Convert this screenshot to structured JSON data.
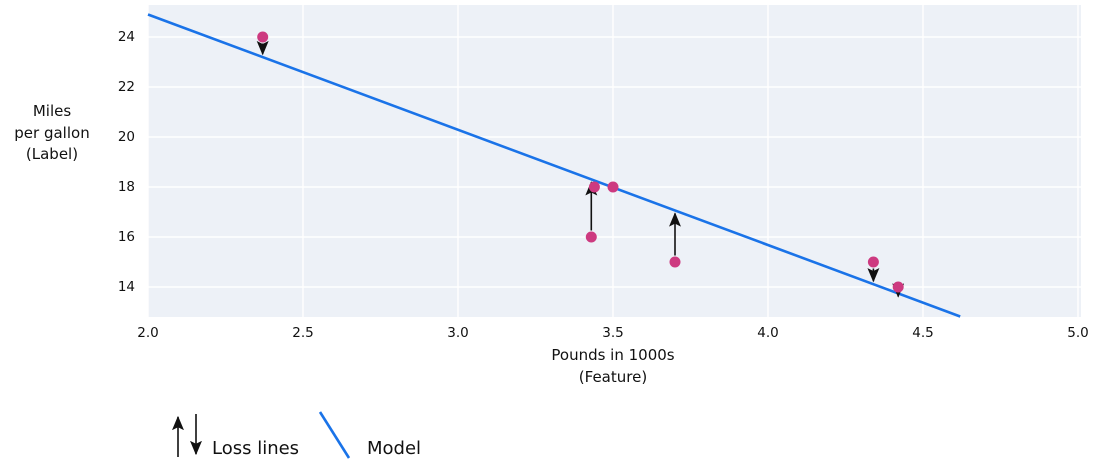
{
  "colors": {
    "figure_bg": "#ffffff",
    "plot_bg": "#edf1f7",
    "grid": "#ffffff",
    "model": "#1a73e8",
    "point": "#cd3a80",
    "arrow": "#111111",
    "text": "#111111"
  },
  "chart_data": {
    "type": "scatter",
    "title": "",
    "xlabel": "Pounds in 1000s\n(Feature)",
    "ylabel": "Miles\nper gallon\n(Label)",
    "xlim": [
      2.0,
      5.0
    ],
    "ylim": [
      12.8,
      25.3
    ],
    "grid": true,
    "x_ticks": [
      {
        "value": 2.0,
        "label": "2.0"
      },
      {
        "value": 2.5,
        "label": "2.5"
      },
      {
        "value": 3.0,
        "label": "3.0"
      },
      {
        "value": 3.5,
        "label": "3.5"
      },
      {
        "value": 4.0,
        "label": "4.0"
      },
      {
        "value": 4.5,
        "label": "4.5"
      },
      {
        "value": 5.0,
        "label": "5.0"
      }
    ],
    "y_ticks": [
      {
        "value": 14,
        "label": "14"
      },
      {
        "value": 16,
        "label": "16"
      },
      {
        "value": 18,
        "label": "18"
      },
      {
        "value": 20,
        "label": "20"
      },
      {
        "value": 22,
        "label": "22"
      },
      {
        "value": 24,
        "label": "24"
      }
    ],
    "points": [
      {
        "x": 2.37,
        "y": 24,
        "loss": "down"
      },
      {
        "x": 3.44,
        "y": 18,
        "loss": "none"
      },
      {
        "x": 3.5,
        "y": 18,
        "loss": "none"
      },
      {
        "x": 3.43,
        "y": 16,
        "loss": "up"
      },
      {
        "x": 3.7,
        "y": 15,
        "loss": "up"
      },
      {
        "x": 4.34,
        "y": 15,
        "loss": "down"
      },
      {
        "x": 4.42,
        "y": 14,
        "loss": "down"
      }
    ],
    "model_line": {
      "x1": 2.0,
      "y1": 24.9,
      "x2": 4.62,
      "y2": 12.82
    },
    "legend": [
      {
        "label": "Loss lines",
        "symbol": "loss-arrows"
      },
      {
        "label": "Model",
        "symbol": "model-line"
      }
    ]
  }
}
